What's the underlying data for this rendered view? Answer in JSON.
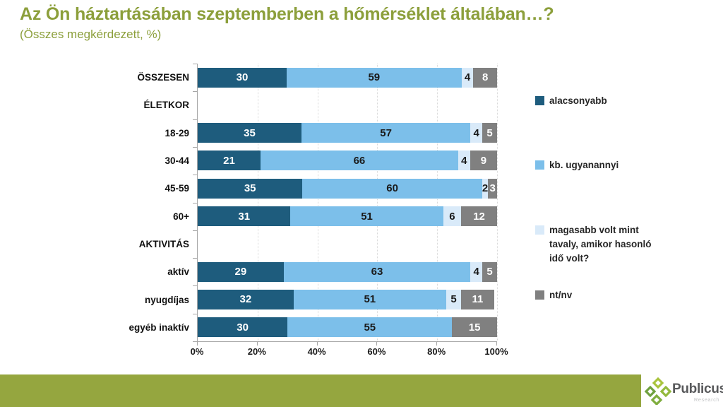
{
  "title": "Az Ön háztartásában szeptemberben a hőmérséklet általában…?",
  "subtitle": "(Összes megkérdezett, %)",
  "colors": {
    "title_green": "#8c9f3b",
    "band_green": "#95a63f",
    "series_dark_blue": "#1e5c7d",
    "series_light_blue": "#7cbfea",
    "series_pale_blue": "#d9eaf9",
    "series_gray": "#808080",
    "axis_line": "#a6a6a6",
    "gridline": "#d9d9d9"
  },
  "chart_data": {
    "type": "bar",
    "subtype": "horizontal-stacked",
    "title": "Az Ön háztartásában szeptemberben a hőmérséklet általában…?",
    "subtitle": "(Összes megkérdezett, %)",
    "xlim": [
      0,
      100
    ],
    "grid": "vertical-dotted-20pct",
    "legend_position": "right",
    "x_ticks": [
      "0%",
      "20%",
      "40%",
      "60%",
      "80%",
      "100%"
    ],
    "series": [
      {
        "name": "alacsonyabb",
        "color": "#1e5c7d",
        "label_color": "#ffffff"
      },
      {
        "name": "kb. ugyanannyi",
        "color": "#7cbfea",
        "label_color": "#1a1a1a"
      },
      {
        "name": "magasabb volt mint tavaly, amikor hasonló idő volt?",
        "color": "#d9eaf9",
        "label_color": "#1a1a1a"
      },
      {
        "name": "nt/nv",
        "color": "#808080",
        "label_color": "#ffffff"
      }
    ],
    "rows": [
      {
        "label": "ÖSSZESEN",
        "type": "bar",
        "values": [
          30,
          59,
          4,
          8
        ]
      },
      {
        "label": "ÉLETKOR",
        "type": "header",
        "values": null
      },
      {
        "label": "18-29",
        "type": "bar",
        "values": [
          35,
          57,
          4,
          5
        ]
      },
      {
        "label": "30-44",
        "type": "bar",
        "values": [
          21,
          66,
          4,
          9
        ]
      },
      {
        "label": "45-59",
        "type": "bar",
        "values": [
          35,
          60,
          2,
          3
        ]
      },
      {
        "label": "60+",
        "type": "bar",
        "values": [
          31,
          51,
          6,
          12
        ]
      },
      {
        "label": "AKTIVITÁS",
        "type": "header",
        "values": null
      },
      {
        "label": "aktív",
        "type": "bar",
        "values": [
          29,
          63,
          4,
          5
        ]
      },
      {
        "label": "nyugdíjas",
        "type": "bar",
        "values": [
          32,
          51,
          5,
          11
        ]
      },
      {
        "label": "egyéb inaktív",
        "type": "bar",
        "values": [
          30,
          55,
          0,
          15
        ]
      }
    ]
  },
  "footer": {
    "logo_text": "Publicus",
    "logo_subtext": "Research"
  }
}
